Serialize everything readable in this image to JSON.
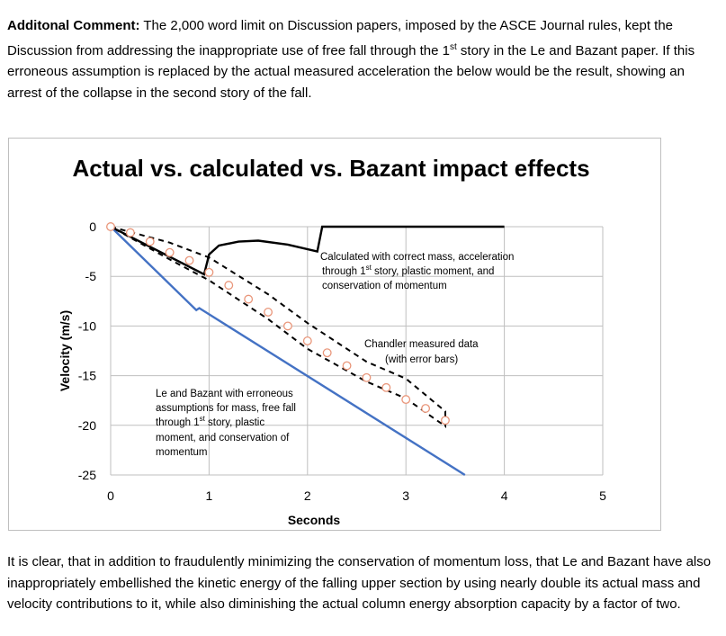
{
  "text_top": {
    "lead": "Additonal Comment:",
    "part1": " The 2,000 word limit on Discussion papers, imposed by the ASCE Journal rules, kept the Discussion from addressing the inappropriate use of free fall through the 1",
    "sup": "st",
    "part2": " story in the Le and Bazant paper. If this erroneous assumption is replaced by the actual measured acceleration the below would be the result, showing an arrest of the collapse in the second story of the fall."
  },
  "text_bottom": "It is clear, that in addition to fraudulently minimizing the conservation of momentum loss, that Le and Bazant have also inappropriately embellished the kinetic energy of the falling upper section by using nearly double its actual mass and velocity contributions to it, while also diminishing the actual column energy absorption capacity by a factor of two.",
  "chart_data": {
    "type": "line",
    "title": "Actual vs. calculated vs. Bazant impact effects",
    "xlabel": "Seconds",
    "ylabel": "Velocity (m/s)",
    "xlim": [
      0,
      5
    ],
    "ylim": [
      -25,
      0
    ],
    "x_ticks": [
      "0",
      "1",
      "2",
      "3",
      "4",
      "5"
    ],
    "y_ticks": [
      "0",
      "-5",
      "-10",
      "-15",
      "-20",
      "-25"
    ],
    "grid": true,
    "series": [
      {
        "color": "#000000",
        "style": "solid",
        "points": [
          [
            0,
            0
          ],
          [
            0.95,
            -4.8
          ],
          [
            1.0,
            -2.8
          ],
          [
            1.1,
            -1.9
          ],
          [
            1.3,
            -1.5
          ],
          [
            1.5,
            -1.4
          ],
          [
            1.8,
            -1.8
          ],
          [
            2.1,
            -2.5
          ],
          [
            2.15,
            0
          ],
          [
            2.5,
            0
          ],
          [
            3.0,
            0
          ],
          [
            3.5,
            0
          ],
          [
            4.0,
            0
          ]
        ]
      },
      {
        "color": "#4472c4",
        "style": "solid",
        "points": [
          [
            0,
            0
          ],
          [
            0.87,
            -8.4
          ],
          [
            0.9,
            -8.2
          ],
          [
            3.6,
            -25
          ]
        ]
      },
      {
        "color": "#000000",
        "style": "dashed",
        "points": [
          [
            0,
            0
          ],
          [
            0.6,
            -1.6
          ],
          [
            1.0,
            -3.1
          ],
          [
            1.6,
            -6.8
          ],
          [
            2.0,
            -9.7
          ],
          [
            2.6,
            -13.6
          ],
          [
            3.0,
            -15.3
          ],
          [
            3.4,
            -18.6
          ],
          [
            3.4,
            -20.1
          ],
          [
            3.0,
            -17.3
          ],
          [
            2.6,
            -15.6
          ],
          [
            2.0,
            -12.3
          ],
          [
            1.6,
            -9.3
          ],
          [
            1.0,
            -5.4
          ],
          [
            0.6,
            -3.3
          ],
          [
            0,
            0
          ]
        ]
      }
    ],
    "points": {
      "color": "#e9967a",
      "x": [
        0,
        0.2,
        0.4,
        0.6,
        0.8,
        1.0,
        1.2,
        1.4,
        1.6,
        1.8,
        2.0,
        2.2,
        2.4,
        2.6,
        2.8,
        3.0,
        3.2,
        3.4
      ],
      "y": [
        0,
        -0.6,
        -1.5,
        -2.6,
        -3.4,
        -4.6,
        -5.9,
        -7.3,
        -8.6,
        -10.0,
        -11.5,
        -12.7,
        -14.0,
        -15.2,
        -16.2,
        -17.4,
        -18.3,
        -19.5
      ]
    },
    "annotations": {
      "calculated": {
        "line1": "Calculated with correct mass, acceleration",
        "line2a": "through 1",
        "line2sup": "st",
        "line2b": " story, plastic moment, and",
        "line3": "conservation of momentum"
      },
      "chandler": {
        "line1": "Chandler measured data",
        "line2": "(with error bars)"
      },
      "bazant": {
        "line1": "Le and Bazant with erroneous",
        "line2": "assumptions for mass, free fall",
        "line3a": "through 1",
        "line3sup": "st",
        "line3b": " story, plastic",
        "line4": "moment, and conservation of",
        "line5": "momentum"
      }
    }
  }
}
